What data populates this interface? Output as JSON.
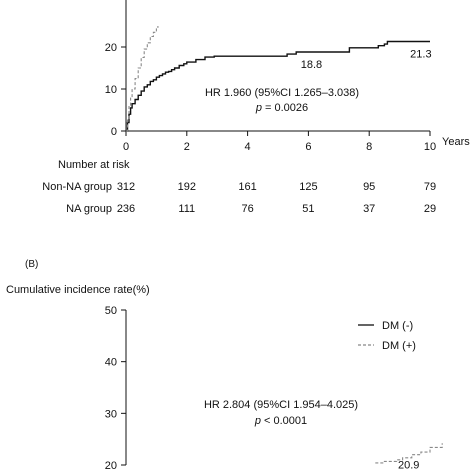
{
  "chart_data": [
    {
      "type": "line",
      "panel_label": "",
      "ylabel": "",
      "xlabel": "Years",
      "xlim": [
        0,
        10
      ],
      "ylim": [
        0,
        25
      ],
      "x_ticks": [
        0,
        2,
        4,
        6,
        8,
        10
      ],
      "y_ticks": [
        0,
        10,
        20
      ],
      "grid": false,
      "series": [
        {
          "style": "solid",
          "color": "#111111",
          "points": [
            [
              0,
              0
            ],
            [
              0.05,
              2
            ],
            [
              0.1,
              4
            ],
            [
              0.15,
              5.5
            ],
            [
              0.2,
              6.5
            ],
            [
              0.3,
              7.5
            ],
            [
              0.4,
              8.5
            ],
            [
              0.5,
              9.5
            ],
            [
              0.6,
              10.5
            ],
            [
              0.7,
              11
            ],
            [
              0.8,
              11.8
            ],
            [
              0.9,
              12.2
            ],
            [
              1.0,
              12.8
            ],
            [
              1.1,
              13.2
            ],
            [
              1.2,
              13.6
            ],
            [
              1.3,
              14
            ],
            [
              1.4,
              14.2
            ],
            [
              1.5,
              14.6
            ],
            [
              1.6,
              15
            ],
            [
              1.75,
              15.6
            ],
            [
              1.9,
              16
            ],
            [
              2.0,
              16.4
            ],
            [
              2.3,
              17
            ],
            [
              2.6,
              17.6
            ],
            [
              2.9,
              17.8
            ],
            [
              4.0,
              17.8
            ],
            [
              5.0,
              17.8
            ],
            [
              5.3,
              18.3
            ],
            [
              5.6,
              18.8
            ],
            [
              7.3,
              18.8
            ],
            [
              7.35,
              19.8
            ],
            [
              8.2,
              19.8
            ],
            [
              8.3,
              20.3
            ],
            [
              8.5,
              20.7
            ],
            [
              8.6,
              21.3
            ],
            [
              10.0,
              21.3
            ]
          ]
        },
        {
          "style": "dashed",
          "color": "#888888",
          "points": [
            [
              0,
              0
            ],
            [
              0.05,
              3
            ],
            [
              0.1,
              6
            ],
            [
              0.15,
              8
            ],
            [
              0.2,
              10
            ],
            [
              0.3,
              12.5
            ],
            [
              0.4,
              15
            ],
            [
              0.5,
              17.5
            ],
            [
              0.6,
              19.5
            ],
            [
              0.7,
              21
            ],
            [
              0.8,
              22.5
            ],
            [
              0.9,
              23.5
            ],
            [
              1.0,
              24.3
            ],
            [
              1.05,
              25
            ]
          ]
        }
      ],
      "annotations": [
        {
          "text": "18.8",
          "x": 6.1,
          "y": 18.8
        },
        {
          "text": "21.3",
          "x": 9.7,
          "y": 21.3
        }
      ],
      "hr_text": "HR 1.960 (95%CI 1.265–3.038)",
      "p_label": "p",
      "p_text": " = 0.0026",
      "risk_table": {
        "title": "Number at risk",
        "columns": [
          0,
          2,
          4,
          6,
          8,
          10
        ],
        "rows": [
          {
            "label": "Non-NA group",
            "values": [
              312,
              192,
              161,
              125,
              95,
              79
            ]
          },
          {
            "label": "NA group",
            "values": [
              236,
              111,
              76,
              51,
              37,
              29
            ]
          }
        ]
      }
    },
    {
      "type": "line",
      "panel_label": "(B)",
      "ylabel": "Cumulative incidence rate(%)",
      "xlabel": "",
      "xlim": [
        0,
        10
      ],
      "ylim": [
        20,
        50
      ],
      "y_ticks": [
        20,
        30,
        40,
        50
      ],
      "grid": false,
      "legend": {
        "placement": "top-right",
        "entries": [
          {
            "label": "DM (-)",
            "style": "solid",
            "color": "#111111"
          },
          {
            "label": "DM (+)",
            "style": "dashed",
            "color": "#888888"
          }
        ]
      },
      "series": [
        {
          "name": "DM (+)",
          "style": "dashed",
          "color": "#888888",
          "points": [
            [
              8.2,
              20.4
            ],
            [
              8.5,
              20.7
            ],
            [
              8.9,
              21.0
            ],
            [
              9.1,
              21.4
            ],
            [
              9.4,
              22.0
            ],
            [
              9.7,
              22.5
            ],
            [
              10.0,
              23.4
            ],
            [
              10.4,
              24.2
            ]
          ]
        }
      ],
      "annotations": [
        {
          "text": "20.9",
          "x": 9.3,
          "y": 22.4
        }
      ],
      "hr_text": "HR 2.804 (95%CI 1.954–4.025)",
      "p_label": "p",
      "p_text": " < 0.0001"
    }
  ]
}
